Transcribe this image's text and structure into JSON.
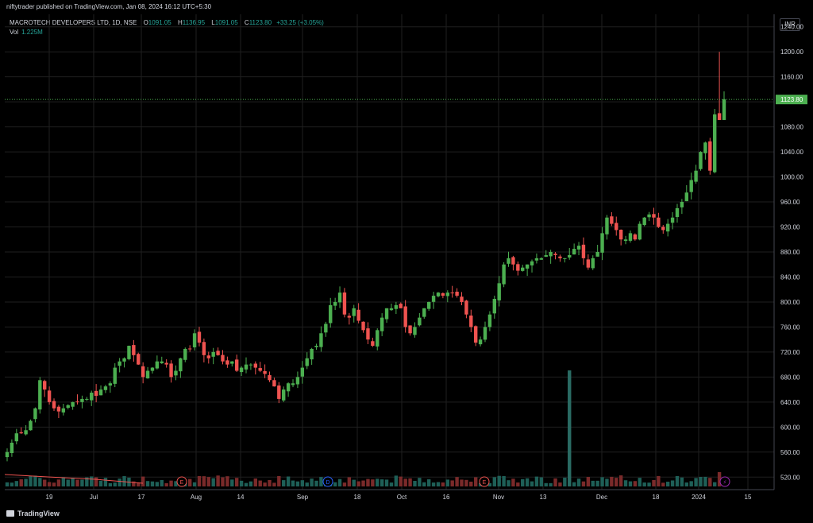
{
  "publisher": "niftytrader published on TradingView.com, Jan 08, 2024 16:12 UTC+5:30",
  "legend": {
    "symbol": "MACROTECH DEVELOPERS LTD, 1D, NSE",
    "o_label": "O",
    "o": "1091.05",
    "h_label": "H",
    "h": "1136.95",
    "l_label": "L",
    "l": "1091.05",
    "c_label": "C",
    "c": "1123.80",
    "change": "+33.25 (+3.05%)",
    "vol_label": "Vol",
    "vol": "1.225M"
  },
  "currency": "INR",
  "brand": "TradingView",
  "markers": {
    "earnings": "E",
    "dividend": "D",
    "split": "⚡"
  },
  "colors": {
    "up": "#26a69a",
    "down": "#ef5350",
    "up_body": "#4caf50",
    "grid": "#1f1f1f",
    "bg": "#000000",
    "last_price": "#4caf50",
    "volume_spike": "#2a6b63"
  },
  "chart_data": {
    "type": "candlestick",
    "ylim": [
      500,
      1260
    ],
    "y_ticks": [
      520,
      560,
      600,
      640,
      680,
      720,
      760,
      800,
      840,
      880,
      920,
      960,
      1000,
      1040,
      1080,
      1120,
      1160,
      1200,
      1240
    ],
    "x_tick_labels": [
      "19",
      "Jul",
      "17",
      "Aug",
      "14",
      "Sep",
      "18",
      "Oct",
      "16",
      "Nov",
      "13",
      "Dec",
      "18",
      "2024",
      "15"
    ],
    "last_price": "1123.80",
    "closes": [
      560,
      575,
      590,
      590,
      595,
      610,
      630,
      675,
      660,
      640,
      630,
      625,
      630,
      635,
      640,
      640,
      645,
      645,
      655,
      650,
      660,
      665,
      670,
      695,
      705,
      710,
      730,
      715,
      700,
      680,
      690,
      695,
      705,
      705,
      700,
      680,
      690,
      710,
      725,
      725,
      750,
      735,
      715,
      710,
      720,
      715,
      705,
      700,
      705,
      690,
      695,
      700,
      700,
      695,
      690,
      685,
      675,
      665,
      645,
      660,
      670,
      670,
      680,
      695,
      710,
      725,
      730,
      750,
      765,
      795,
      800,
      815,
      780,
      775,
      790,
      770,
      755,
      740,
      730,
      755,
      775,
      790,
      790,
      795,
      790,
      760,
      750,
      760,
      775,
      790,
      800,
      810,
      815,
      810,
      815,
      815,
      810,
      800,
      780,
      760,
      735,
      740,
      760,
      780,
      805,
      830,
      860,
      870,
      860,
      850,
      855,
      860,
      865,
      870,
      870,
      875,
      880,
      875,
      870,
      870,
      875,
      885,
      890,
      870,
      855,
      870,
      880,
      910,
      935,
      925,
      915,
      900,
      900,
      910,
      900,
      925,
      935,
      940,
      935,
      920,
      915,
      925,
      935,
      950,
      960,
      975,
      995,
      1010,
      1040,
      1055,
      1010,
      1100,
      1091,
      1124
    ],
    "series": [
      {
        "name": "Vol",
        "note": "volume histogram; spike near end of Nov"
      }
    ]
  }
}
